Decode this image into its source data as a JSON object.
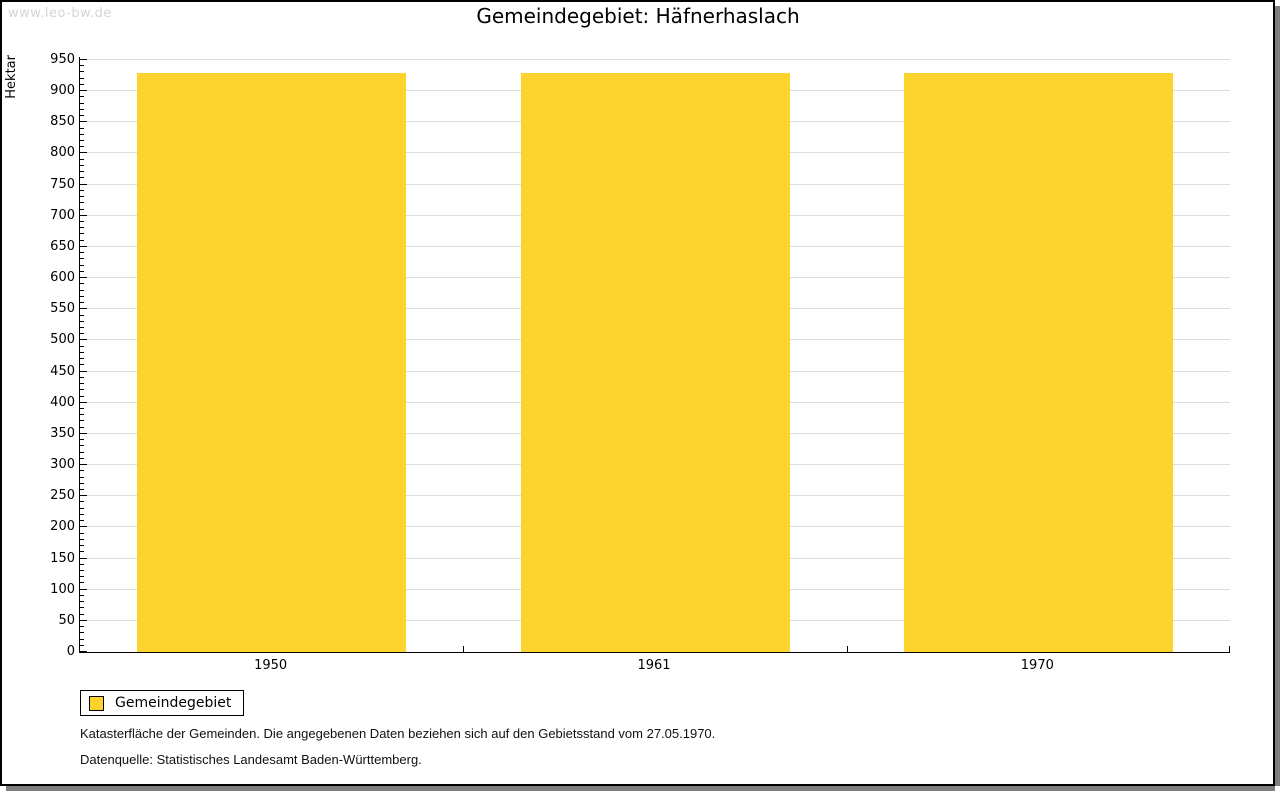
{
  "watermark": "www.leo-bw.de",
  "title": "Gemeindegebiet: Häfnerhaslach",
  "chart_data": {
    "type": "bar",
    "title": "Gemeindegebiet: Häfnerhaslach",
    "categories": [
      "1950",
      "1961",
      "1970"
    ],
    "series": [
      {
        "name": "Gemeindegebiet",
        "values": [
          929,
          929,
          929
        ]
      }
    ],
    "xlabel": "",
    "ylabel": "Hektar",
    "ylim": [
      0,
      950
    ],
    "y_major_step": 50,
    "y_minor_step": 10,
    "grid": true,
    "legend_position": "bottom-left",
    "bar_color": "#FCD42D"
  },
  "legend": {
    "items": [
      {
        "label": "Gemeindegebiet",
        "color": "#FCD42D"
      }
    ]
  },
  "footer": {
    "line1": "Katasterfläche der Gemeinden. Die angegebenen Daten beziehen sich auf den Gebietsstand vom 27.05.1970.",
    "line2": "Datenquelle: Statistisches Landesamt Baden-Württemberg."
  },
  "colors": {
    "bar": "#FCD42D",
    "grid": "#dddddd",
    "axis": "#000000",
    "watermark": "#d5d5d5"
  }
}
